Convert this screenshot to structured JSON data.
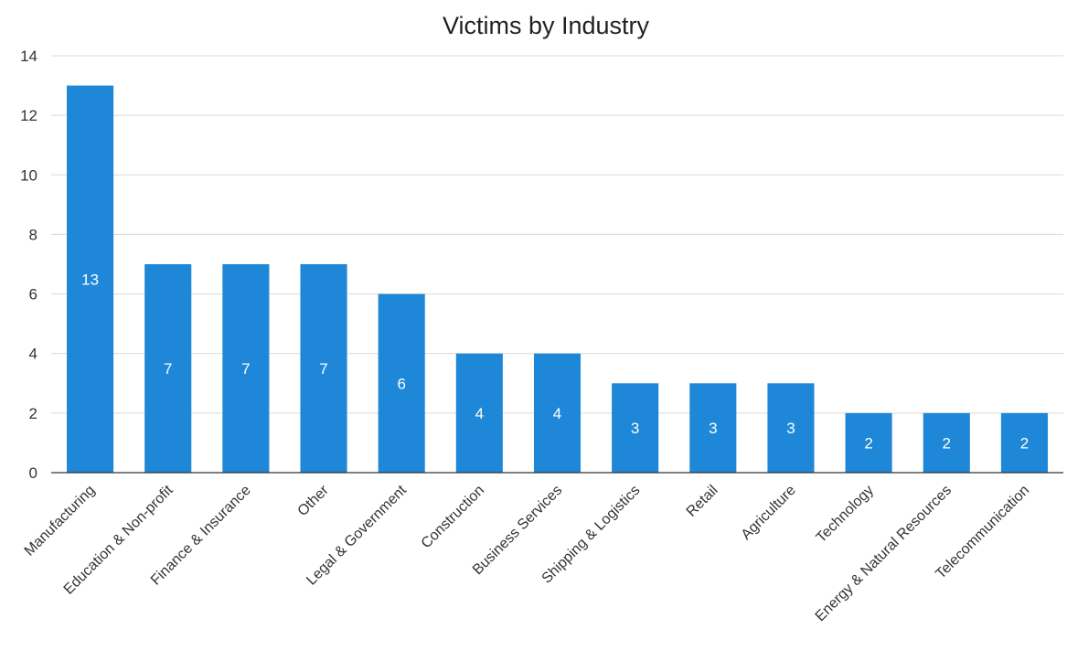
{
  "chart_data": {
    "type": "bar",
    "title": "Victims by Industry",
    "xlabel": "",
    "ylabel": "",
    "categories": [
      "Manufacturing",
      "Education & Non-profit",
      "Finance & Insurance",
      "Other",
      "Legal & Government",
      "Construction",
      "Business Services",
      "Shipping & Logistics",
      "Retail",
      "Agriculture",
      "Technology",
      "Energy & Natural Resources",
      "Telecommunication"
    ],
    "values": [
      13,
      7,
      7,
      7,
      6,
      4,
      4,
      3,
      3,
      3,
      2,
      2,
      2
    ],
    "ylim": [
      0,
      14
    ],
    "yticks": [
      0,
      2,
      4,
      6,
      8,
      10,
      12,
      14
    ],
    "grid": true,
    "legend": "none",
    "bar_color": "#1f87d8",
    "data_labels": true
  }
}
